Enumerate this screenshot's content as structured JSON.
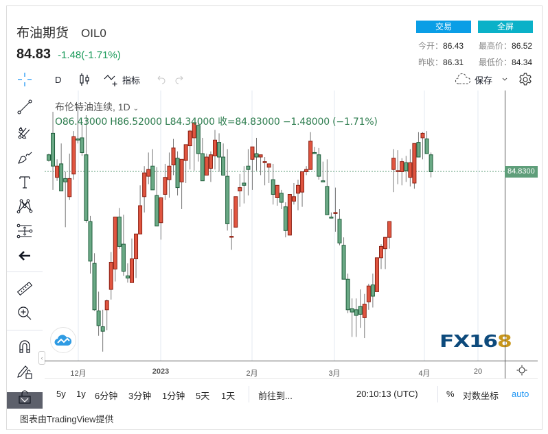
{
  "header": {
    "title": "布油期货",
    "symbol": "OIL0",
    "price": "84.83",
    "change": "-1.48(-1.71%)",
    "trade_button": "交易",
    "fullscreen_button": "全屏",
    "stats": {
      "open_label": "今开：",
      "open": "86.43",
      "high_label": "最高价：",
      "high": "86.52",
      "prev_close_label": "昨收：",
      "prev_close": "86.31",
      "low_label": "最低价：",
      "low": "84.34"
    }
  },
  "toolbar": {
    "interval": "D",
    "indicators_label": "指标",
    "save_label": "保存"
  },
  "left_tools": [
    "crosshair-icon",
    "trendline-icon",
    "pitchfork-icon",
    "brush-icon",
    "text-icon",
    "pattern-icon",
    "measure-range-icon",
    "back-arrow-icon",
    "ruler-icon",
    "zoom-in-icon",
    "magnet-icon",
    "lock-drawing-icon",
    "unlock-icon"
  ],
  "legend": {
    "series_name": "布伦特油连续, 1D",
    "ohlc": "O86.43000  H86.52000  L84.34000  收=84.83000  −1.48000 (−1.71%)"
  },
  "price_axis": {
    "last_price_label": "84.8300"
  },
  "colors": {
    "up": "#e05540",
    "up_border": "#8a1f12",
    "down": "#6aa985",
    "down_border": "#1e5c3a",
    "wick": "#777777",
    "price_line": "#5f9e7a",
    "trade_btn": "#0a9ee6",
    "fullscreen_btn": "#0ab1c8"
  },
  "time_axis": {
    "ticks": [
      {
        "label": "12月",
        "x": 49
      },
      {
        "label": "2023",
        "x": 169
      },
      {
        "label": "2月",
        "x": 302
      },
      {
        "label": "3月",
        "x": 422
      },
      {
        "label": "4月",
        "x": 553
      },
      {
        "label": "20",
        "x": 631
      }
    ]
  },
  "bottom_bar": {
    "ranges": [
      "5y",
      "1y",
      "6分钟",
      "3分钟",
      "1分钟",
      "5天",
      "1天"
    ],
    "goto": "前往到...",
    "clock": "20:10:13 (UTC)",
    "percent": "%",
    "log_scale": "对数坐标",
    "auto": "auto"
  },
  "credit": "图表由TradingView提供",
  "logo": {
    "text_main": "FX16",
    "text_gold": "8"
  },
  "chart_data": {
    "type": "candlestick",
    "title": "布伦特油连续, 1D",
    "xlabel": "",
    "ylabel": "",
    "x_ticks": [
      "12月",
      "2023",
      "2月",
      "3月",
      "4月",
      "20"
    ],
    "last_price": 84.83,
    "y_range": [
      69.5,
      92.5
    ],
    "note": "Chinese convention: red = rising close, green = falling close. Values estimated from pixel positions.",
    "candles": [
      {
        "o": 86.3,
        "h": 86.4,
        "c": 85.8,
        "l": 85.7
      },
      {
        "o": 88.2,
        "h": 90.1,
        "l": 83.2,
        "c": 85.3
      },
      {
        "o": 84.3,
        "h": 85.9,
        "l": 84.0,
        "c": 85.3
      },
      {
        "o": 85.5,
        "h": 87.3,
        "l": 83.3,
        "c": 83.1
      },
      {
        "o": 84.2,
        "h": 84.8,
        "l": 79.9,
        "c": 83.9
      },
      {
        "o": 82.6,
        "h": 86.4,
        "l": 82.3,
        "c": 84.2
      },
      {
        "o": 84.6,
        "h": 88.4,
        "l": 84.1,
        "c": 87.9
      },
      {
        "o": 87.7,
        "h": 90.7,
        "l": 87.3,
        "c": 87.6
      },
      {
        "o": 87.8,
        "h": 89.0,
        "l": 86.2,
        "c": 86.5
      },
      {
        "o": 86.3,
        "h": 89.8,
        "l": 80.3,
        "c": 80.5
      },
      {
        "o": 80.4,
        "h": 80.9,
        "l": 75.8,
        "c": 76.9
      },
      {
        "o": 76.7,
        "h": 77.6,
        "l": 72.5,
        "c": 72.6
      },
      {
        "o": 72.5,
        "h": 74.2,
        "l": 70.3,
        "c": 71.2
      },
      {
        "o": 71.1,
        "h": 72.6,
        "l": 68.9,
        "c": 70.7
      },
      {
        "o": 72.6,
        "h": 73.5,
        "l": 70.8,
        "c": 73.4
      },
      {
        "o": 74.4,
        "h": 77.7,
        "l": 73.5,
        "c": 76.8
      },
      {
        "o": 76.2,
        "h": 80.2,
        "l": 75.1,
        "c": 80.8
      },
      {
        "o": 80.8,
        "h": 81.6,
        "l": 78.0,
        "c": 78.2
      },
      {
        "o": 78.4,
        "h": 81.0,
        "l": 75.6,
        "c": 76.0
      },
      {
        "o": 75.6,
        "h": 76.7,
        "l": 75.0,
        "c": 75.4
      },
      {
        "o": 75.0,
        "h": 78.9,
        "l": 75.0,
        "c": 77.1
      },
      {
        "o": 77.1,
        "h": 78.9,
        "l": 75.4,
        "c": 79.3
      },
      {
        "o": 79.3,
        "h": 83.6,
        "l": 79.8,
        "c": 81.8
      },
      {
        "o": 82.6,
        "h": 85.3,
        "l": 81.2,
        "c": 84.7
      },
      {
        "o": 84.4,
        "h": 86.5,
        "l": 83.7,
        "c": 85.0
      },
      {
        "o": 85.3,
        "h": 86.8,
        "l": 83.6,
        "c": 83.2
      },
      {
        "o": 82.7,
        "h": 85.2,
        "l": 80.2,
        "c": 80.0
      },
      {
        "o": 80.3,
        "h": 82.3,
        "l": 78.8,
        "c": 82.5
      },
      {
        "o": 82.8,
        "h": 85.5,
        "l": 82.3,
        "c": 84.3
      },
      {
        "o": 84.1,
        "h": 86.5,
        "l": 82.5,
        "c": 85.3
      },
      {
        "o": 85.4,
        "h": 87.7,
        "l": 84.5,
        "c": 86.9
      },
      {
        "o": 86.0,
        "h": 86.6,
        "l": 82.7,
        "c": 83.4
      },
      {
        "o": 83.9,
        "h": 84.3,
        "l": 81.5,
        "c": 85.9
      },
      {
        "o": 85.8,
        "h": 86.9,
        "l": 83.8,
        "c": 87.2
      },
      {
        "o": 87.1,
        "h": 88.5,
        "l": 85.0,
        "c": 88.4
      },
      {
        "o": 87.8,
        "h": 88.9,
        "l": 84.9,
        "c": 89.1
      },
      {
        "o": 88.9,
        "h": 89.5,
        "l": 85.7,
        "c": 86.4
      },
      {
        "o": 86.4,
        "h": 87.8,
        "l": 84.3,
        "c": 84.0
      },
      {
        "o": 84.5,
        "h": 86.4,
        "l": 85.2,
        "c": 86.1
      },
      {
        "o": 85.1,
        "h": 86.6,
        "l": 83.9,
        "c": 86.3
      },
      {
        "o": 86.2,
        "h": 88.5,
        "l": 85.0,
        "c": 87.6
      },
      {
        "o": 87.4,
        "h": 88.2,
        "l": 84.8,
        "c": 86.1
      },
      {
        "o": 86.1,
        "h": 87.3,
        "l": 85.0,
        "c": 84.5
      },
      {
        "o": 84.4,
        "h": 86.8,
        "l": 79.6,
        "c": 80.2
      },
      {
        "o": 79.1,
        "h": 81.5,
        "l": 77.9,
        "c": 79.1
      },
      {
        "o": 79.9,
        "h": 82.3,
        "l": 80.1,
        "c": 82.6
      },
      {
        "o": 83.1,
        "h": 84.6,
        "l": 81.7,
        "c": 83.4
      },
      {
        "o": 83.8,
        "h": 85.3,
        "l": 82.0,
        "c": 83.6
      },
      {
        "o": 85.3,
        "h": 86.8,
        "l": 82.7,
        "c": 85.0
      },
      {
        "o": 85.9,
        "h": 86.9,
        "l": 83.2,
        "c": 87.0
      },
      {
        "o": 86.4,
        "h": 87.8,
        "l": 84.9,
        "c": 86.1
      },
      {
        "o": 86.1,
        "h": 86.3,
        "l": 84.5,
        "c": 86.3
      },
      {
        "o": 85.6,
        "h": 86.1,
        "l": 83.6,
        "c": 85.7
      },
      {
        "o": 85.2,
        "h": 85.4,
        "l": 83.8,
        "c": 85.5
      },
      {
        "o": 84.1,
        "h": 85.5,
        "l": 81.9,
        "c": 82.8
      },
      {
        "o": 82.5,
        "h": 83.3,
        "l": 81.8,
        "c": 83.6
      },
      {
        "o": 82.9,
        "h": 83.2,
        "l": 81.5,
        "c": 82.1
      },
      {
        "o": 81.7,
        "h": 82.1,
        "l": 79.0,
        "c": 79.6
      },
      {
        "o": 79.2,
        "h": 82.3,
        "l": 79.5,
        "c": 82.8
      },
      {
        "o": 82.2,
        "h": 83.8,
        "l": 81.9,
        "c": 82.6
      },
      {
        "o": 82.9,
        "h": 84.1,
        "l": 81.4,
        "c": 83.6
      },
      {
        "o": 83.0,
        "h": 84.4,
        "l": 81.7,
        "c": 84.8
      },
      {
        "o": 84.8,
        "h": 85.3,
        "l": 84.5,
        "c": 85.0
      },
      {
        "o": 85.0,
        "h": 88.3,
        "l": 85.3,
        "c": 87.5
      },
      {
        "o": 86.5,
        "h": 87.0,
        "l": 86.4,
        "c": 86.4
      },
      {
        "o": 86.3,
        "h": 86.9,
        "l": 84.1,
        "c": 84.4
      },
      {
        "o": 84.0,
        "h": 85.7,
        "l": 84.8,
        "c": 83.9
      },
      {
        "o": 83.5,
        "h": 85.9,
        "l": 81.4,
        "c": 81.0
      },
      {
        "o": 80.8,
        "h": 81.2,
        "l": 81.0,
        "c": 80.7
      },
      {
        "o": 81.2,
        "h": 83.4,
        "l": 79.5,
        "c": 81.2
      },
      {
        "o": 80.6,
        "h": 81.5,
        "l": 78.3,
        "c": 78.5
      },
      {
        "o": 78.3,
        "h": 79.0,
        "l": 77.2,
        "c": 75.3
      },
      {
        "o": 75.3,
        "h": 75.8,
        "l": 72.3,
        "c": 72.6
      },
      {
        "o": 72.7,
        "h": 73.6,
        "l": 70.2,
        "c": 72.4
      },
      {
        "o": 72.6,
        "h": 73.6,
        "l": 70.2,
        "c": 72.1
      },
      {
        "o": 72.9,
        "h": 74.4,
        "l": 71.0,
        "c": 72.2
      },
      {
        "o": 71.9,
        "h": 74.0,
        "l": 70.1,
        "c": 73.1
      },
      {
        "o": 73.3,
        "h": 74.9,
        "l": 72.6,
        "c": 74.7
      },
      {
        "o": 74.8,
        "h": 75.8,
        "l": 72.8,
        "c": 73.8
      },
      {
        "o": 74.2,
        "h": 76.1,
        "l": 74.2,
        "c": 77.2
      },
      {
        "o": 77.2,
        "h": 78.4,
        "l": 76.2,
        "c": 78.2
      },
      {
        "o": 78.0,
        "h": 78.7,
        "l": 76.2,
        "c": 79.0
      },
      {
        "o": 79.0,
        "h": 79.9,
        "l": 78.0,
        "c": 80.4
      },
      {
        "o": 85.0,
        "h": 86.8,
        "l": 83.0,
        "c": 86.0
      },
      {
        "o": 84.9,
        "h": 86.7,
        "l": 83.7,
        "c": 84.9
      },
      {
        "o": 84.8,
        "h": 86.0,
        "l": 83.6,
        "c": 85.7
      },
      {
        "o": 85.6,
        "h": 86.2,
        "l": 83.9,
        "c": 84.9
      },
      {
        "o": 84.3,
        "h": 86.8,
        "l": 83.5,
        "c": 85.6
      },
      {
        "o": 83.8,
        "h": 87.1,
        "l": 83.3,
        "c": 87.3
      },
      {
        "o": 87.4,
        "h": 88.3,
        "l": 86.2,
        "c": 86.1
      },
      {
        "o": 87.8,
        "h": 88.3,
        "l": 85.9,
        "c": 88.2
      },
      {
        "o": 87.7,
        "h": 88.4,
        "l": 86.5,
        "c": 86.4
      },
      {
        "o": 86.3,
        "h": 86.5,
        "l": 84.3,
        "c": 84.8
      }
    ]
  }
}
